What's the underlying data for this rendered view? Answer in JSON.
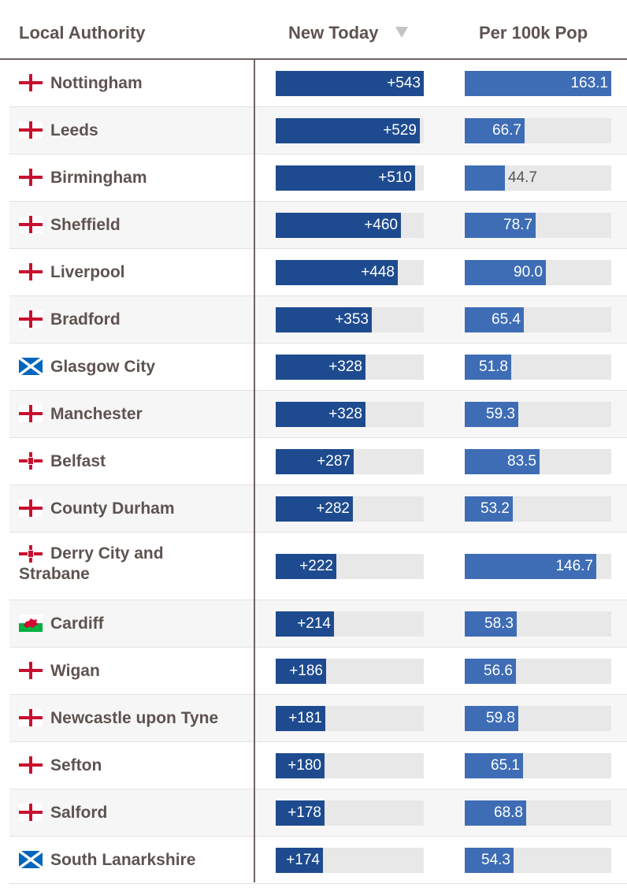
{
  "header": {
    "local_authority": "Local Authority",
    "new_today": "New Today",
    "per_100k": "Per 100k Pop"
  },
  "colors": {
    "new_today_bar": "#1e4b8f",
    "per_100k_bar": "#3e6db5",
    "track": "#e8e8e8",
    "name_text": "#5e5350"
  },
  "chart_data": {
    "type": "bar",
    "orientation": "horizontal",
    "sorted_by": "New Today",
    "sort_direction": "descending",
    "columns": [
      "Local Authority",
      "New Today",
      "Per 100k Pop"
    ],
    "new_today_max": 543,
    "per_100k_max": 163.1,
    "rows": [
      {
        "name": "Nottingham",
        "flag": "england-flag-icon",
        "new_today": 543,
        "new_today_label": "+543",
        "per_100k": 163.1,
        "per_100k_label": "163.1"
      },
      {
        "name": "Leeds",
        "flag": "england-flag-icon",
        "new_today": 529,
        "new_today_label": "+529",
        "per_100k": 66.7,
        "per_100k_label": "66.7"
      },
      {
        "name": "Birmingham",
        "flag": "england-flag-icon",
        "new_today": 510,
        "new_today_label": "+510",
        "per_100k": 44.7,
        "per_100k_label": "44.7"
      },
      {
        "name": "Sheffield",
        "flag": "england-flag-icon",
        "new_today": 460,
        "new_today_label": "+460",
        "per_100k": 78.7,
        "per_100k_label": "78.7"
      },
      {
        "name": "Liverpool",
        "flag": "england-flag-icon",
        "new_today": 448,
        "new_today_label": "+448",
        "per_100k": 90.0,
        "per_100k_label": "90.0"
      },
      {
        "name": "Bradford",
        "flag": "england-flag-icon",
        "new_today": 353,
        "new_today_label": "+353",
        "per_100k": 65.4,
        "per_100k_label": "65.4"
      },
      {
        "name": "Glasgow City",
        "flag": "scotland-flag-icon",
        "new_today": 328,
        "new_today_label": "+328",
        "per_100k": 51.8,
        "per_100k_label": "51.8"
      },
      {
        "name": "Manchester",
        "flag": "england-flag-icon",
        "new_today": 328,
        "new_today_label": "+328",
        "per_100k": 59.3,
        "per_100k_label": "59.3"
      },
      {
        "name": "Belfast",
        "flag": "northern-ireland-flag-icon",
        "new_today": 287,
        "new_today_label": "+287",
        "per_100k": 83.5,
        "per_100k_label": "83.5"
      },
      {
        "name": "County Durham",
        "flag": "england-flag-icon",
        "new_today": 282,
        "new_today_label": "+282",
        "per_100k": 53.2,
        "per_100k_label": "53.2"
      },
      {
        "name": "Derry City and Strabane",
        "flag": "northern-ireland-flag-icon",
        "new_today": 222,
        "new_today_label": "+222",
        "per_100k": 146.7,
        "per_100k_label": "146.7"
      },
      {
        "name": "Cardiff",
        "flag": "wales-flag-icon",
        "new_today": 214,
        "new_today_label": "+214",
        "per_100k": 58.3,
        "per_100k_label": "58.3"
      },
      {
        "name": "Wigan",
        "flag": "england-flag-icon",
        "new_today": 186,
        "new_today_label": "+186",
        "per_100k": 56.6,
        "per_100k_label": "56.6"
      },
      {
        "name": "Newcastle upon Tyne",
        "flag": "england-flag-icon",
        "new_today": 181,
        "new_today_label": "+181",
        "per_100k": 59.8,
        "per_100k_label": "59.8"
      },
      {
        "name": "Sefton",
        "flag": "england-flag-icon",
        "new_today": 180,
        "new_today_label": "+180",
        "per_100k": 65.1,
        "per_100k_label": "65.1"
      },
      {
        "name": "Salford",
        "flag": "england-flag-icon",
        "new_today": 178,
        "new_today_label": "+178",
        "per_100k": 68.8,
        "per_100k_label": "68.8"
      },
      {
        "name": "South Lanarkshire",
        "flag": "scotland-flag-icon",
        "new_today": 174,
        "new_today_label": "+174",
        "per_100k": 54.3,
        "per_100k_label": "54.3"
      }
    ]
  }
}
